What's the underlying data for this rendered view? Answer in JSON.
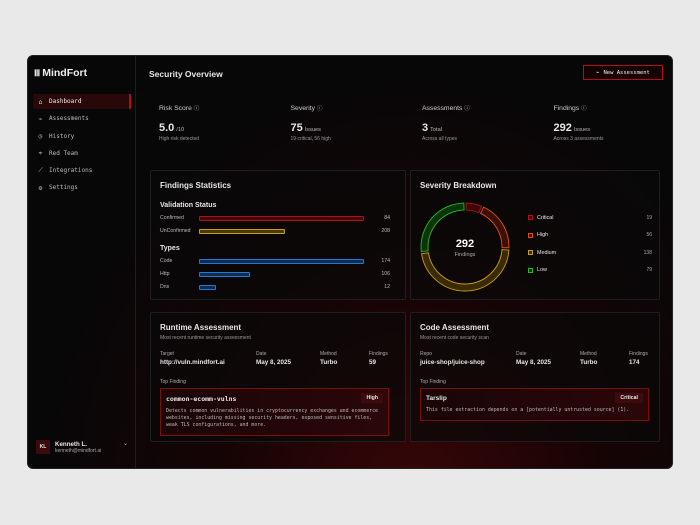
{
  "brand": {
    "name": "MindFort"
  },
  "sidebar": {
    "items": [
      {
        "label": "Dashboard",
        "icon": "home-icon",
        "glyph": "⌂",
        "active": true
      },
      {
        "label": "Assessments",
        "icon": "pulse-icon",
        "glyph": "⌁"
      },
      {
        "label": "History",
        "icon": "history-icon",
        "glyph": "◷"
      },
      {
        "label": "Red Team",
        "icon": "target-icon",
        "glyph": "⌖"
      },
      {
        "label": "Integrations",
        "icon": "plug-icon",
        "glyph": "⟋"
      },
      {
        "label": "Settings",
        "icon": "gear-icon",
        "glyph": "⚙"
      }
    ],
    "user": {
      "initials": "KL",
      "name": "Kenneth L.",
      "email": "kenneth@mindfort.ai"
    }
  },
  "header": {
    "title": "Security Overview",
    "new_button": "New Assessment"
  },
  "stats": [
    {
      "label": "Risk Score",
      "value": "5.0",
      "unit": "/10",
      "sub": "High risk detected"
    },
    {
      "label": "Severity",
      "value": "75",
      "unit": "Issues",
      "sub": "19 critical, 56 high"
    },
    {
      "label": "Assessments",
      "value": "3",
      "unit": "Total",
      "sub": "Across all types"
    },
    {
      "label": "Findings",
      "value": "292",
      "unit": "Issues",
      "sub": "Across 3 assessments"
    }
  ],
  "findings_stats": {
    "title": "Findings Statistics",
    "validation": {
      "title": "Validation Status",
      "rows": [
        {
          "label": "Confirmed",
          "value": "84",
          "fill": 1.0,
          "color": "#b01016"
        },
        {
          "label": "UnConfirmed",
          "value": "208",
          "fill": 0.52,
          "color": "#c8a012"
        }
      ]
    },
    "types": {
      "title": "Types",
      "rows": [
        {
          "label": "Code",
          "value": "174",
          "fill": 1.0,
          "color": "#1e78d8"
        },
        {
          "label": "Http",
          "value": "106",
          "fill": 0.31,
          "color": "#1e78d8"
        },
        {
          "label": "Dns",
          "value": "12",
          "fill": 0.1,
          "color": "#1e78d8"
        }
      ]
    }
  },
  "severity_breakdown": {
    "title": "Severity Breakdown",
    "total": "292",
    "total_label": "Findings",
    "items": [
      {
        "label": "Critical",
        "value": 19,
        "color": "#b01016",
        "fill": "#3d0608"
      },
      {
        "label": "High",
        "value": 56,
        "color": "#e0521a",
        "fill": "#3d1006"
      },
      {
        "label": "Medium",
        "value": 138,
        "color": "#c8a012",
        "fill": "#3a2a06"
      },
      {
        "label": "Low",
        "value": 79,
        "color": "#2fb52a",
        "fill": "#0a3508"
      }
    ]
  },
  "runtime": {
    "title": "Runtime Assessment",
    "subtitle": "Most recent runtime security assessment",
    "meta": [
      {
        "k": "Target",
        "v": "http://vuln.mindfort.ai"
      },
      {
        "k": "Date",
        "v": "May 8, 2025"
      },
      {
        "k": "Method",
        "v": "Turbo"
      },
      {
        "k": "Findings",
        "v": "59"
      }
    ],
    "top_label": "Top Finding",
    "finding": {
      "name": "common-ecomm-vulns",
      "severity": "High",
      "desc": "Detects common vulnerabilities in cryptocurrency exchanges and ecommerce websites, including missing security headers, exposed sensitive files, weak TLS configurations, and more."
    }
  },
  "code": {
    "title": "Code Assessment",
    "subtitle": "Most recent code security scan",
    "meta": [
      {
        "k": "Repo",
        "v": "juice-shop/juice-shop"
      },
      {
        "k": "Date",
        "v": "May 8, 2025"
      },
      {
        "k": "Method",
        "v": "Turbo"
      },
      {
        "k": "Findings",
        "v": "174"
      }
    ],
    "top_label": "Top Finding",
    "finding": {
      "name": "Tarslip",
      "severity": "Critical",
      "desc": "This file extraction depends on a [potentially untrusted source] (1)."
    }
  }
}
